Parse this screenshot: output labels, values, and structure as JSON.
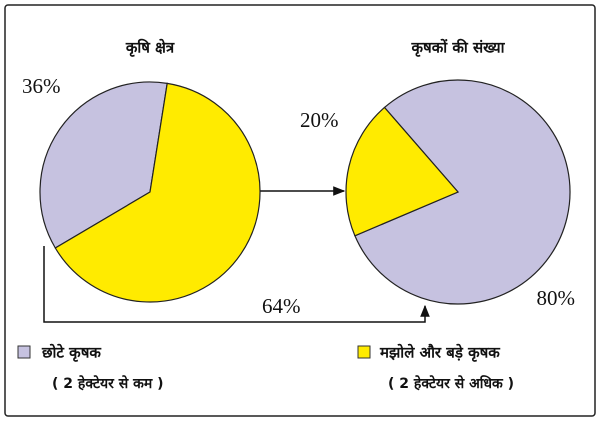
{
  "chart_data": [
    {
      "type": "pie",
      "title": "कृषि क्षेत्र",
      "values": [
        36,
        64
      ],
      "value_labels": [
        "36%",
        "64%"
      ]
    },
    {
      "type": "pie",
      "title": "कृषकों की संख्या",
      "values": [
        80,
        20
      ],
      "value_labels": [
        "80%",
        "20%"
      ]
    }
  ],
  "legend": {
    "items": [
      {
        "name": "छोटे कृषक",
        "note": "( 2 हेक्टेयर से कम )",
        "color": "#c6c2e0"
      },
      {
        "name": "मझोले और बड़े कृषक",
        "note": "( 2 हेक्टेयर से अधिक )",
        "color": "#ffeb00"
      }
    ]
  }
}
